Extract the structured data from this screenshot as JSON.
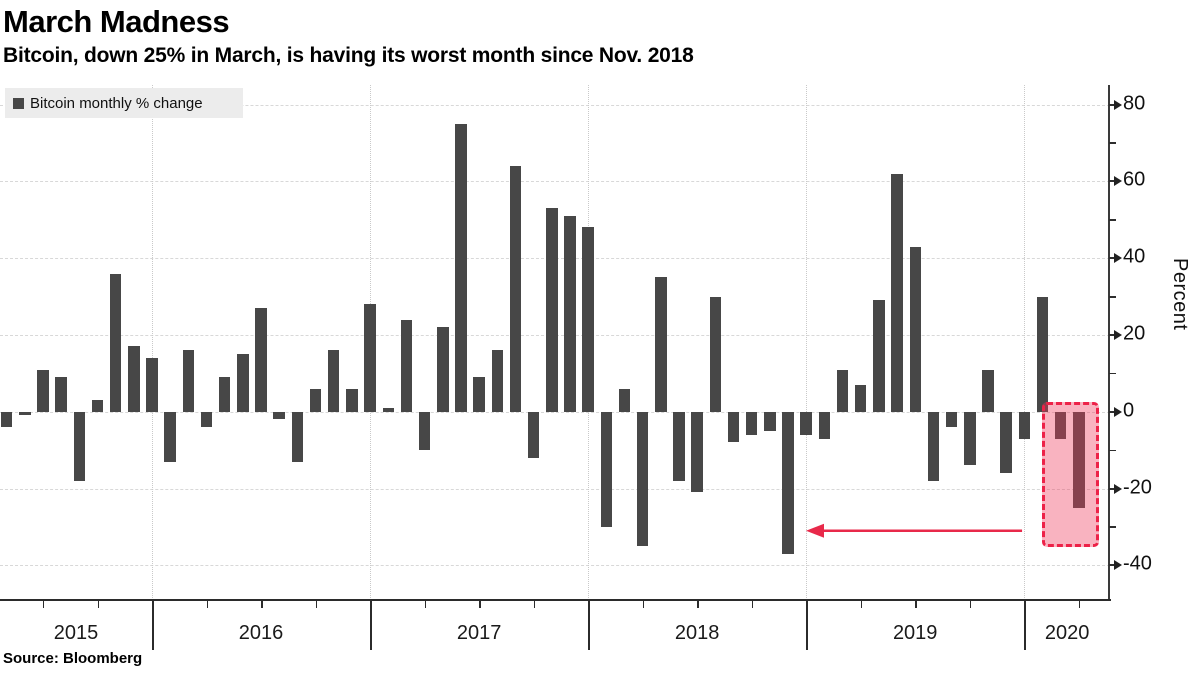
{
  "header": {
    "title": "March Madness",
    "subtitle": "Bitcoin, down 25% in March, is having its worst month since Nov. 2018"
  },
  "legend": {
    "label": "Bitcoin monthly % change"
  },
  "source": {
    "text": "Source: Bloomberg"
  },
  "y_axis": {
    "unit_label": "Percent",
    "major_ticks": [
      80,
      60,
      40,
      20,
      0,
      -20,
      -40
    ],
    "minor_ticks": [
      70,
      50,
      30,
      10,
      -10,
      -30
    ]
  },
  "x_axis": {
    "year_labels": [
      "2015",
      "2016",
      "2017",
      "2018",
      "2019",
      "2020"
    ]
  },
  "colors": {
    "bar": "#474747",
    "highlight_fill": "rgba(240,55,90,0.38)",
    "highlight_border": "#ed2248",
    "arrow": "#e8294a",
    "gridline": "#d8d8d8",
    "axis": "#2b2b2b",
    "legend_background": "#ececec"
  },
  "chart_data": {
    "type": "bar",
    "title": "March Madness",
    "subtitle": "Bitcoin, down 25% in March, is having its worst month since Nov. 2018",
    "series_name": "Bitcoin monthly % change",
    "ylabel": "Percent",
    "ylim": [
      -49,
      85
    ],
    "grid": true,
    "months": [
      "Apr 2015",
      "May 2015",
      "Jun 2015",
      "Jul 2015",
      "Aug 2015",
      "Sep 2015",
      "Oct 2015",
      "Nov 2015",
      "Dec 2015",
      "Jan 2016",
      "Feb 2016",
      "Mar 2016",
      "Apr 2016",
      "May 2016",
      "Jun 2016",
      "Jul 2016",
      "Aug 2016",
      "Sep 2016",
      "Oct 2016",
      "Nov 2016",
      "Dec 2016",
      "Jan 2017",
      "Feb 2017",
      "Mar 2017",
      "Apr 2017",
      "May 2017",
      "Jun 2017",
      "Jul 2017",
      "Aug 2017",
      "Sep 2017",
      "Oct 2017",
      "Nov 2017",
      "Dec 2017",
      "Jan 2018",
      "Feb 2018",
      "Mar 2018",
      "Apr 2018",
      "May 2018",
      "Jun 2018",
      "Jul 2018",
      "Aug 2018",
      "Sep 2018",
      "Oct 2018",
      "Nov 2018",
      "Dec 2018",
      "Jan 2019",
      "Feb 2019",
      "Mar 2019",
      "Apr 2019",
      "May 2019",
      "Jun 2019",
      "Jul 2019",
      "Aug 2019",
      "Sep 2019",
      "Oct 2019",
      "Nov 2019",
      "Dec 2019",
      "Jan 2020",
      "Feb 2020",
      "Mar 2020"
    ],
    "values": [
      -4,
      -1,
      11,
      9,
      -18,
      3,
      36,
      17,
      14,
      -13,
      16,
      -4,
      9,
      15,
      27,
      -2,
      -13,
      6,
      16,
      6,
      28,
      1,
      24,
      -10,
      22,
      75,
      9,
      16,
      64,
      -12,
      53,
      51,
      48,
      -30,
      6,
      -35,
      35,
      -18,
      -21,
      30,
      -8,
      -6,
      -5,
      -37,
      -6,
      -7,
      11,
      7,
      29,
      62,
      43,
      -18,
      -4,
      -14,
      11,
      -16,
      -7,
      30,
      -7,
      -25
    ],
    "highlight": {
      "start_month": "Feb 2020",
      "end_month": "Mar 2020",
      "top_value": 2.6,
      "bottom_value": -35.2
    },
    "annotation_arrow": {
      "points_to_month": "Nov 2018",
      "at_value": -31
    }
  }
}
